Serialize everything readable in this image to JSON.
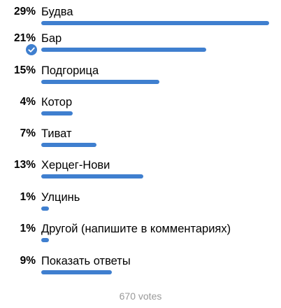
{
  "poll": {
    "options": [
      {
        "percent": "29%",
        "label": "Будва",
        "fraction": 0.29,
        "voted": false
      },
      {
        "percent": "21%",
        "label": "Бар",
        "fraction": 0.21,
        "voted": true
      },
      {
        "percent": "15%",
        "label": "Подгорица",
        "fraction": 0.15,
        "voted": false
      },
      {
        "percent": "4%",
        "label": "Котор",
        "fraction": 0.04,
        "voted": false
      },
      {
        "percent": "7%",
        "label": "Тиват",
        "fraction": 0.07,
        "voted": false
      },
      {
        "percent": "13%",
        "label": "Херцег-Нови",
        "fraction": 0.13,
        "voted": false
      },
      {
        "percent": "1%",
        "label": "Улцинь",
        "fraction": 0.01,
        "voted": false
      },
      {
        "percent": "1%",
        "label": "Другой (напишите в комментариях)",
        "fraction": 0.01,
        "voted": false
      },
      {
        "percent": "9%",
        "label": "Показать ответы",
        "fraction": 0.09,
        "voted": false
      }
    ],
    "votes_label": "670 votes",
    "colors": {
      "bar": "#3f7fcf",
      "votes_text": "#9a9a9a"
    },
    "icons": {
      "voted_marker": "check-circle-icon"
    }
  }
}
